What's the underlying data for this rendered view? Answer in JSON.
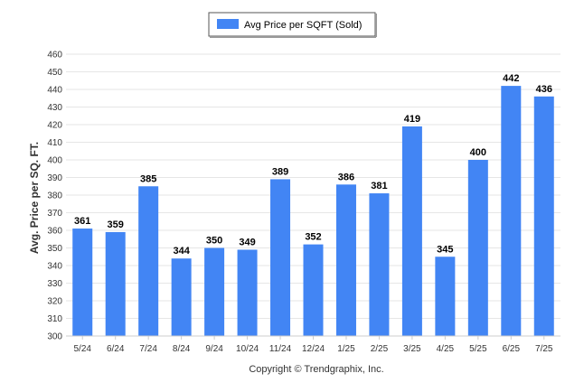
{
  "chart_data": {
    "type": "bar",
    "categories": [
      "5/24",
      "6/24",
      "7/24",
      "8/24",
      "9/24",
      "10/24",
      "11/24",
      "12/24",
      "1/25",
      "2/25",
      "3/25",
      "4/25",
      "5/25",
      "6/25",
      "7/25"
    ],
    "series": [
      {
        "name": "Avg Price per SQFT (Sold)",
        "values": [
          361,
          359,
          385,
          344,
          350,
          349,
          389,
          352,
          386,
          381,
          419,
          345,
          400,
          442,
          436
        ]
      }
    ],
    "ylabel": "Avg. Price per SQ. FT.",
    "xlabel": "",
    "ylim": [
      300,
      460
    ],
    "yticks": [
      300,
      310,
      320,
      330,
      340,
      350,
      360,
      370,
      380,
      390,
      400,
      410,
      420,
      430,
      440,
      450,
      460
    ],
    "grid": true,
    "legend_position": "top-center",
    "bar_color": "#4285f4",
    "copyright": "Copyright © Trendgraphix, Inc."
  }
}
